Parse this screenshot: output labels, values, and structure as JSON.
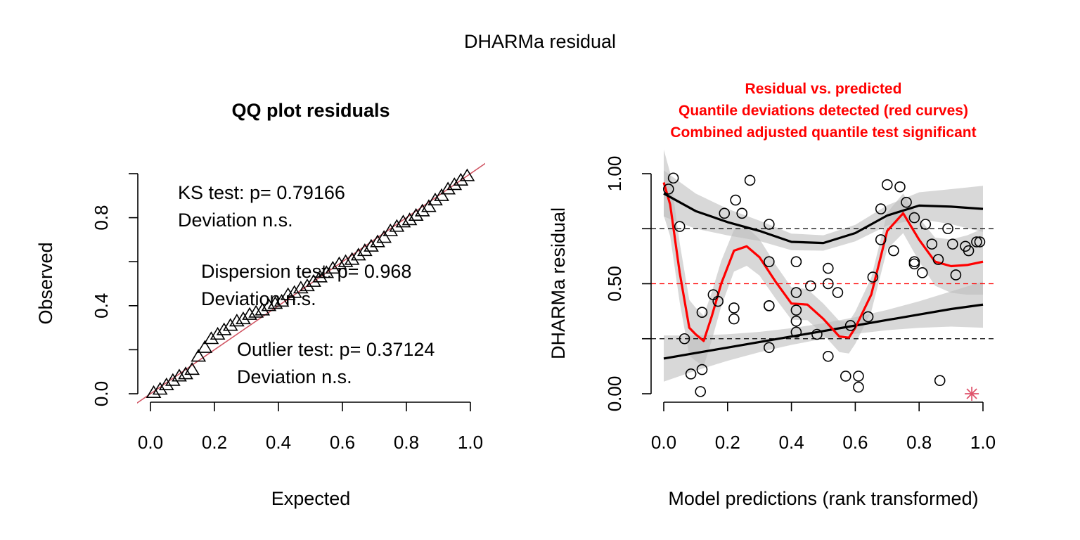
{
  "figure_title": "DHARMa residual",
  "chart_data": [
    {
      "type": "scatter",
      "title": "QQ plot residuals",
      "xlabel": "Expected",
      "ylabel": "Observed",
      "xlim": [
        0,
        1
      ],
      "ylim": [
        0,
        1
      ],
      "xticks": [
        0.0,
        0.2,
        0.4,
        0.6,
        0.8,
        1.0
      ],
      "xtick_labels": [
        "0.0",
        "0.2",
        "0.4",
        "0.6",
        "0.8",
        "1.0"
      ],
      "yticks": [
        0.0,
        0.2,
        0.4,
        0.6,
        0.8,
        1.0
      ],
      "ytick_labels": [
        "0.0",
        "",
        "0.4",
        "",
        "0.8",
        ""
      ],
      "marker": "triangle",
      "reference_line": {
        "slope": 1,
        "intercept": 0,
        "color": "#d05563"
      },
      "points": {
        "x": [
          0.01,
          0.03,
          0.05,
          0.07,
          0.09,
          0.11,
          0.13,
          0.15,
          0.17,
          0.19,
          0.21,
          0.23,
          0.25,
          0.27,
          0.29,
          0.31,
          0.33,
          0.35,
          0.37,
          0.39,
          0.41,
          0.43,
          0.45,
          0.47,
          0.49,
          0.51,
          0.53,
          0.55,
          0.57,
          0.59,
          0.61,
          0.63,
          0.65,
          0.67,
          0.69,
          0.71,
          0.73,
          0.75,
          0.77,
          0.79,
          0.81,
          0.83,
          0.85,
          0.87,
          0.89,
          0.91,
          0.93,
          0.95,
          0.97,
          0.99
        ],
        "y": [
          0.005,
          0.02,
          0.04,
          0.06,
          0.08,
          0.09,
          0.11,
          0.17,
          0.21,
          0.25,
          0.27,
          0.29,
          0.31,
          0.33,
          0.34,
          0.36,
          0.37,
          0.38,
          0.4,
          0.41,
          0.42,
          0.45,
          0.46,
          0.48,
          0.49,
          0.51,
          0.53,
          0.55,
          0.57,
          0.59,
          0.6,
          0.61,
          0.63,
          0.65,
          0.67,
          0.69,
          0.71,
          0.74,
          0.76,
          0.78,
          0.79,
          0.81,
          0.83,
          0.85,
          0.88,
          0.9,
          0.93,
          0.95,
          0.97,
          0.99
        ]
      },
      "annotations": [
        {
          "line1": "KS test: p= 0.79166",
          "line2": "Deviation  n.s."
        },
        {
          "line1": "Dispersion test: p= 0.968",
          "line2": "Deviation  n.s."
        },
        {
          "line1": "Outlier test: p= 0.37124",
          "line2": "Deviation  n.s."
        }
      ]
    },
    {
      "type": "scatter",
      "title_lines": [
        "Residual vs. predicted",
        "Quantile deviations detected (red curves)",
        "Combined adjusted quantile test significant"
      ],
      "title_color": "#ff0000",
      "xlabel": "Model predictions (rank transformed)",
      "ylabel": "DHARMa residual",
      "xlim": [
        0,
        1
      ],
      "ylim": [
        0,
        1
      ],
      "xticks": [
        0.0,
        0.2,
        0.4,
        0.6,
        0.8,
        1.0
      ],
      "xtick_labels": [
        "0.0",
        "0.2",
        "0.4",
        "0.6",
        "0.8",
        "1.0"
      ],
      "yticks": [
        0.0,
        0.25,
        0.5,
        0.75,
        1.0
      ],
      "ytick_labels": [
        "0.00",
        "",
        "0.50",
        "",
        "1.00"
      ],
      "hlines": [
        {
          "y": 0.25,
          "color": "#000000"
        },
        {
          "y": 0.5,
          "color": "#ff0000"
        },
        {
          "y": 0.75,
          "color": "#000000"
        }
      ],
      "points": {
        "x": [
          0.015,
          0.03,
          0.05,
          0.065,
          0.085,
          0.115,
          0.12,
          0.12,
          0.155,
          0.17,
          0.19,
          0.22,
          0.22,
          0.225,
          0.245,
          0.27,
          0.33,
          0.33,
          0.33,
          0.33,
          0.33,
          0.415,
          0.415,
          0.415,
          0.415,
          0.415,
          0.46,
          0.48,
          0.515,
          0.515,
          0.515,
          0.545,
          0.57,
          0.585,
          0.61,
          0.61,
          0.64,
          0.655,
          0.68,
          0.68,
          0.7,
          0.72,
          0.74,
          0.76,
          0.785,
          0.785,
          0.785,
          0.81,
          0.82,
          0.84,
          0.86,
          0.865,
          0.89,
          0.905,
          0.915,
          0.945,
          0.955,
          0.98,
          0.99
        ],
        "y": [
          0.93,
          0.98,
          0.76,
          0.25,
          0.09,
          0.01,
          0.11,
          0.37,
          0.45,
          0.42,
          0.82,
          0.34,
          0.39,
          0.88,
          0.82,
          0.97,
          0.77,
          0.6,
          0.4,
          0.4,
          0.21,
          0.6,
          0.46,
          0.38,
          0.33,
          0.28,
          0.49,
          0.27,
          0.57,
          0.5,
          0.17,
          0.46,
          0.08,
          0.31,
          0.08,
          0.03,
          0.35,
          0.53,
          0.84,
          0.7,
          0.95,
          0.65,
          0.94,
          0.87,
          0.59,
          0.6,
          0.8,
          0.55,
          0.77,
          0.68,
          0.61,
          0.06,
          0.75,
          0.68,
          0.54,
          0.67,
          0.65,
          0.69,
          0.69
        ]
      },
      "outliers": {
        "x": [
          0.965
        ],
        "y": [
          0.0
        ]
      },
      "quantile_curves": [
        {
          "q": 0.25,
          "color": "#000000",
          "x": [
            0.0,
            0.1,
            0.2,
            0.3,
            0.4,
            0.5,
            0.6,
            0.7,
            0.8,
            0.9,
            1.0
          ],
          "y": [
            0.16,
            0.185,
            0.21,
            0.235,
            0.26,
            0.285,
            0.31,
            0.335,
            0.36,
            0.385,
            0.405
          ]
        },
        {
          "q": 0.5,
          "color": "#ff0000",
          "x": [
            0.0,
            0.02,
            0.05,
            0.08,
            0.1,
            0.125,
            0.15,
            0.18,
            0.22,
            0.26,
            0.3,
            0.35,
            0.4,
            0.45,
            0.5,
            0.55,
            0.58,
            0.6,
            0.65,
            0.7,
            0.75,
            0.8,
            0.85,
            0.9,
            0.95,
            1.0
          ],
          "y": [
            0.96,
            0.86,
            0.55,
            0.3,
            0.27,
            0.24,
            0.35,
            0.5,
            0.65,
            0.67,
            0.62,
            0.51,
            0.41,
            0.405,
            0.34,
            0.26,
            0.255,
            0.3,
            0.45,
            0.74,
            0.82,
            0.7,
            0.6,
            0.58,
            0.585,
            0.6
          ]
        },
        {
          "q": 0.75,
          "color": "#000000",
          "x": [
            0.0,
            0.1,
            0.2,
            0.3,
            0.4,
            0.5,
            0.6,
            0.7,
            0.8,
            0.9,
            1.0
          ],
          "y": [
            0.91,
            0.83,
            0.78,
            0.74,
            0.69,
            0.685,
            0.73,
            0.81,
            0.855,
            0.85,
            0.84
          ]
        }
      ]
    }
  ]
}
